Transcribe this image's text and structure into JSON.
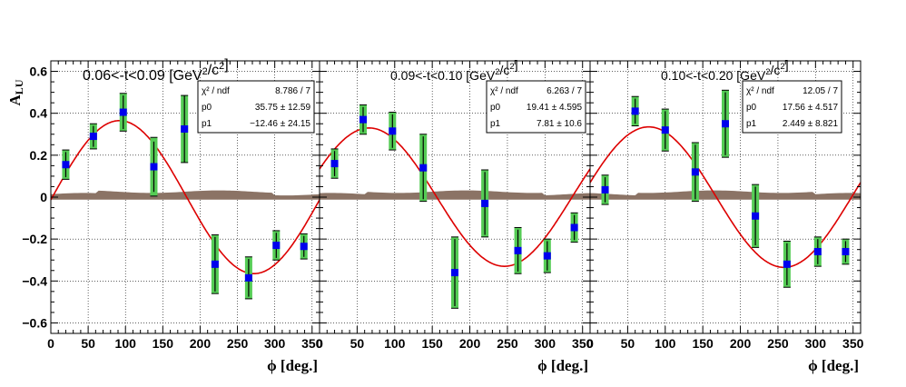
{
  "chart_data": {
    "type": "scatter",
    "ylabel": "A",
    "ylabel_sub": "LU",
    "xlabel": "ϕ [deg.]",
    "xlim": [
      0,
      360
    ],
    "ylim": [
      -0.65,
      0.65
    ],
    "x_ticks": [
      0,
      50,
      100,
      150,
      200,
      250,
      300,
      350
    ],
    "y_ticks": [
      -0.6,
      -0.4,
      -0.2,
      0,
      0.2,
      0.4,
      0.6
    ],
    "y_tick_labels": [
      "−0.6",
      "−0.4",
      "−0.2",
      "0",
      "0.2",
      "0.4",
      "0.6"
    ],
    "grid": true,
    "colors": {
      "points": "#0000ee",
      "syst": "#55cc55",
      "fit": "#dd0000",
      "band": "#8b7365"
    },
    "panels": [
      {
        "title": "0.06<-t<0.09 [GeV²/c²]",
        "stats": {
          "chi2_label": "χ² / ndf",
          "chi2_value": "8.786 / 7",
          "p0_label": "p0",
          "p0_value": "35.75 ± 12.59",
          "p1_label": "p1",
          "p1_value": "−12.46 ± 24.15"
        },
        "fit_amplitude": 0.365,
        "fit_peak_phi": 92,
        "x": [
          20,
          57,
          97,
          138,
          179,
          220,
          265,
          302,
          339
        ],
        "y": [
          0.155,
          0.29,
          0.405,
          0.145,
          0.325,
          -0.32,
          -0.385,
          -0.23,
          -0.235
        ],
        "stat_err": [
          0.06,
          0.05,
          0.08,
          0.12,
          0.16,
          0.13,
          0.09,
          0.06,
          0.05
        ],
        "sys_err": [
          0.07,
          0.06,
          0.09,
          0.14,
          0.16,
          0.14,
          0.1,
          0.07,
          0.06
        ]
      },
      {
        "title": "0.09<-t<0.10 [GeV²/c²]",
        "stats": {
          "chi2_label": "χ² / ndf",
          "chi2_value": "6.263 / 7",
          "p0_label": "p0",
          "p0_value": "19.41 ± 4.595",
          "p1_label": "p1",
          "p1_value": "7.81 ±  10.6"
        },
        "fit_amplitude": 0.33,
        "fit_peak_phi": 66,
        "x": [
          20,
          58,
          97,
          138,
          180,
          220,
          264,
          303,
          339
        ],
        "y": [
          0.16,
          0.37,
          0.315,
          0.14,
          -0.36,
          -0.03,
          -0.255,
          -0.28,
          -0.145
        ],
        "stat_err": [
          0.06,
          0.06,
          0.08,
          0.15,
          0.16,
          0.15,
          0.1,
          0.07,
          0.06
        ],
        "sys_err": [
          0.07,
          0.07,
          0.09,
          0.16,
          0.17,
          0.16,
          0.11,
          0.08,
          0.07
        ]
      },
      {
        "title": "0.10<-t<0.20 [GeV²/c²]",
        "stats": {
          "chi2_label": "χ² / ndf",
          "chi2_value": "12.05 / 7",
          "p0_label": "p0",
          "p0_value": "17.56 ± 4.517",
          "p1_label": "p1",
          "p1_value": "2.449 ± 8.821"
        },
        "fit_amplitude": 0.335,
        "fit_peak_phi": 78,
        "x": [
          20,
          60,
          100,
          140,
          180,
          220,
          262,
          303,
          340
        ],
        "y": [
          0.035,
          0.41,
          0.32,
          0.12,
          0.35,
          -0.09,
          -0.32,
          -0.26,
          -0.26
        ],
        "stat_err": [
          0.06,
          0.06,
          0.09,
          0.13,
          0.15,
          0.14,
          0.1,
          0.06,
          0.05
        ],
        "sys_err": [
          0.07,
          0.07,
          0.1,
          0.14,
          0.16,
          0.15,
          0.11,
          0.07,
          0.06
        ]
      }
    ]
  }
}
